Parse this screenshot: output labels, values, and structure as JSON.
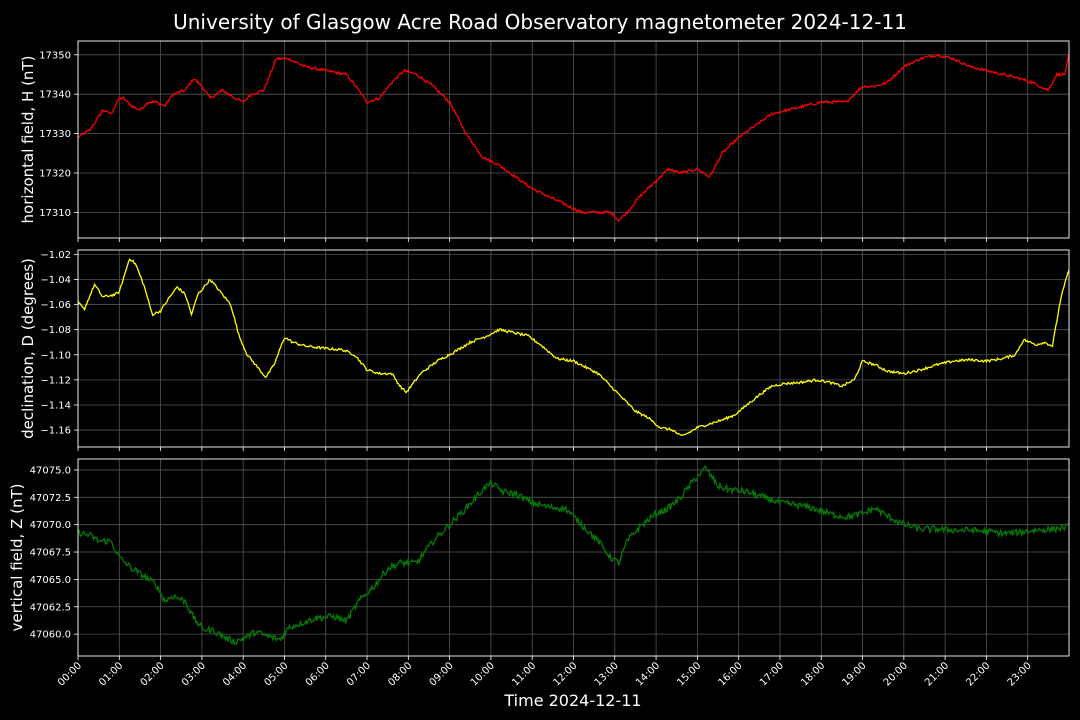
{
  "figure": {
    "title": "University of Glasgow Acre Road Observatory magnetometer 2024-12-11",
    "xlabel": "Time 2024-12-11",
    "background": "#000000",
    "grid_color": "#555555"
  },
  "chart_data": [
    {
      "type": "line",
      "ylabel": "horizontal field, H (nT)",
      "color": "#ff0000",
      "ylim": [
        17303.5,
        17353.5
      ],
      "yticks": [
        17310,
        17320,
        17330,
        17340,
        17350
      ],
      "ytick_labels": [
        "17310",
        "17320",
        "17330",
        "17340",
        "17350"
      ],
      "grid": true,
      "noise": 0.35,
      "x_hours": [
        0,
        0.3,
        0.6,
        0.8,
        1.0,
        1.1,
        1.3,
        1.5,
        1.7,
        1.9,
        2.1,
        2.3,
        2.6,
        2.8,
        3.0,
        3.2,
        3.5,
        3.8,
        4.0,
        4.2,
        4.5,
        4.8,
        5.1,
        5.5,
        6.0,
        6.5,
        6.8,
        7.0,
        7.3,
        7.6,
        7.9,
        8.2,
        8.6,
        9.0,
        9.4,
        9.8,
        10.2,
        10.6,
        11.0,
        11.4,
        11.8,
        12.2,
        12.6,
        12.9,
        13.1,
        13.3,
        13.6,
        14.0,
        14.3,
        14.6,
        15.0,
        15.3,
        15.6,
        16.0,
        16.4,
        16.8,
        17.2,
        17.6,
        18.0,
        18.3,
        18.6,
        19.0,
        19.3,
        19.6,
        20.0,
        20.4,
        20.8,
        21.2,
        21.6,
        22.0,
        22.4,
        22.8,
        23.1,
        23.3,
        23.5,
        23.7,
        23.9,
        24.0
      ],
      "values": [
        17329,
        17331,
        17336,
        17335,
        17339,
        17339,
        17337,
        17336,
        17338,
        17338,
        17337,
        17340,
        17341,
        17344,
        17342,
        17339,
        17341,
        17339,
        17338,
        17340,
        17341,
        17349,
        17349,
        17347,
        17346,
        17345,
        17341,
        17338,
        17339,
        17343,
        17346,
        17345,
        17342,
        17338,
        17330,
        17324,
        17322,
        17319,
        17316,
        17314,
        17312,
        17310,
        17310,
        17310,
        17308,
        17310,
        17314,
        17318,
        17321,
        17320,
        17321,
        17319,
        17325,
        17329,
        17332,
        17335,
        17336,
        17337,
        17338,
        17338,
        17338,
        17342,
        17342,
        17343,
        17347,
        17349,
        17350,
        17349,
        17347,
        17346,
        17345,
        17344,
        17343,
        17342,
        17341,
        17345,
        17345,
        17350
      ]
    },
    {
      "type": "line",
      "ylabel": "declination, D (degrees)",
      "color": "#ffff00",
      "ylim": [
        -1.1735,
        -1.0165
      ],
      "yticks": [
        -1.16,
        -1.14,
        -1.12,
        -1.1,
        -1.08,
        -1.06,
        -1.04,
        -1.02
      ],
      "ytick_labels": [
        "−1.16",
        "−1.14",
        "−1.12",
        "−1.10",
        "−1.08",
        "−1.06",
        "−1.04",
        "−1.02"
      ],
      "grid": true,
      "noise": 0.001,
      "x_hours": [
        0,
        0.15,
        0.4,
        0.6,
        0.9,
        1.0,
        1.25,
        1.4,
        1.6,
        1.8,
        2.0,
        2.2,
        2.4,
        2.6,
        2.75,
        2.9,
        3.0,
        3.2,
        3.5,
        3.7,
        3.9,
        4.1,
        4.35,
        4.55,
        4.75,
        5.0,
        5.2,
        5.5,
        6.0,
        6.4,
        6.7,
        7.0,
        7.3,
        7.6,
        7.8,
        7.95,
        8.3,
        8.7,
        9.1,
        9.5,
        9.9,
        10.2,
        10.5,
        10.9,
        11.2,
        11.6,
        12.0,
        12.3,
        12.6,
        12.9,
        13.2,
        13.5,
        13.8,
        14.1,
        14.4,
        14.6,
        14.8,
        15.0,
        15.3,
        15.6,
        15.9,
        16.2,
        16.5,
        16.8,
        17.1,
        17.5,
        17.9,
        18.2,
        18.5,
        18.8,
        19.0,
        19.3,
        19.6,
        20.0,
        20.4,
        20.8,
        21.2,
        21.6,
        22.0,
        22.4,
        22.7,
        22.9,
        23.2,
        23.4,
        23.6,
        23.8,
        24.0
      ],
      "values": [
        -1.058,
        -1.064,
        -1.044,
        -1.054,
        -1.052,
        -1.05,
        -1.023,
        -1.028,
        -1.045,
        -1.068,
        -1.065,
        -1.055,
        -1.046,
        -1.052,
        -1.068,
        -1.052,
        -1.048,
        -1.04,
        -1.052,
        -1.06,
        -1.085,
        -1.1,
        -1.11,
        -1.118,
        -1.108,
        -1.086,
        -1.09,
        -1.093,
        -1.095,
        -1.096,
        -1.1,
        -1.112,
        -1.115,
        -1.115,
        -1.125,
        -1.13,
        -1.115,
        -1.105,
        -1.098,
        -1.09,
        -1.085,
        -1.08,
        -1.082,
        -1.085,
        -1.092,
        -1.103,
        -1.105,
        -1.11,
        -1.115,
        -1.125,
        -1.135,
        -1.145,
        -1.15,
        -1.158,
        -1.16,
        -1.165,
        -1.162,
        -1.158,
        -1.155,
        -1.152,
        -1.148,
        -1.14,
        -1.132,
        -1.125,
        -1.123,
        -1.122,
        -1.12,
        -1.122,
        -1.125,
        -1.12,
        -1.105,
        -1.108,
        -1.113,
        -1.115,
        -1.112,
        -1.108,
        -1.105,
        -1.104,
        -1.105,
        -1.103,
        -1.1,
        -1.088,
        -1.092,
        -1.09,
        -1.093,
        -1.055,
        -1.032
      ]
    },
    {
      "type": "line",
      "ylabel": "vertical field, Z (nT)",
      "color": "#008000",
      "ylim": [
        47058.0,
        47076.0
      ],
      "yticks": [
        47060.0,
        47062.5,
        47065.0,
        47067.5,
        47070.0,
        47072.5,
        47075.0
      ],
      "ytick_labels": [
        "47060.0",
        "47062.5",
        "47065.0",
        "47067.5",
        "47070.0",
        "47072.5",
        "47075.0"
      ],
      "grid": true,
      "noise": 0.3,
      "x_hours": [
        0,
        0.3,
        0.5,
        0.8,
        1.0,
        1.3,
        1.6,
        1.9,
        2.1,
        2.3,
        2.6,
        2.8,
        3.0,
        3.3,
        3.6,
        3.8,
        4.0,
        4.3,
        4.6,
        4.9,
        5.1,
        5.4,
        5.8,
        6.2,
        6.5,
        6.8,
        7.2,
        7.5,
        7.8,
        8.2,
        8.6,
        9.0,
        9.4,
        9.8,
        10.0,
        10.3,
        10.6,
        11.0,
        11.4,
        11.8,
        12.2,
        12.6,
        12.9,
        13.1,
        13.3,
        13.6,
        14.0,
        14.3,
        14.6,
        14.9,
        15.2,
        15.5,
        15.8,
        16.2,
        16.6,
        17.0,
        17.4,
        17.8,
        18.2,
        18.6,
        19.0,
        19.3,
        19.6,
        20.0,
        20.4,
        20.8,
        21.2,
        21.6,
        22.0,
        22.4,
        22.8,
        23.2,
        23.6,
        24.0
      ],
      "values": [
        47069.3,
        47069.0,
        47068.5,
        47068.5,
        47067,
        47066,
        47065.3,
        47064.5,
        47063,
        47063.5,
        47063,
        47061.5,
        47060.5,
        47060.3,
        47059.6,
        47059.3,
        47059.6,
        47060.2,
        47059.8,
        47059.5,
        47060.6,
        47061.0,
        47061.5,
        47061.6,
        47061.2,
        47063.0,
        47064.5,
        47066.0,
        47066.5,
        47066.5,
        47068.5,
        47070.0,
        47071.5,
        47073.2,
        47073.8,
        47073.0,
        47072.8,
        47072.0,
        47071.6,
        47071.5,
        47070.0,
        47068.5,
        47067.0,
        47066.5,
        47068.5,
        47069.8,
        47071.0,
        47071.5,
        47072.5,
        47074.0,
        47075.2,
        47073.5,
        47073.2,
        47073.0,
        47072.5,
        47072.0,
        47071.8,
        47071.5,
        47071.0,
        47070.7,
        47071.0,
        47071.5,
        47070.8,
        47070.0,
        47069.6,
        47069.6,
        47069.5,
        47069.5,
        47069.4,
        47069.2,
        47069.3,
        47069.5,
        47069.6,
        47069.8
      ]
    }
  ],
  "x_ticks": [
    "00:00",
    "01:00",
    "02:00",
    "03:00",
    "04:00",
    "05:00",
    "06:00",
    "07:00",
    "08:00",
    "09:00",
    "10:00",
    "11:00",
    "12:00",
    "13:00",
    "14:00",
    "15:00",
    "16:00",
    "17:00",
    "18:00",
    "19:00",
    "20:00",
    "21:00",
    "22:00",
    "23:00"
  ]
}
